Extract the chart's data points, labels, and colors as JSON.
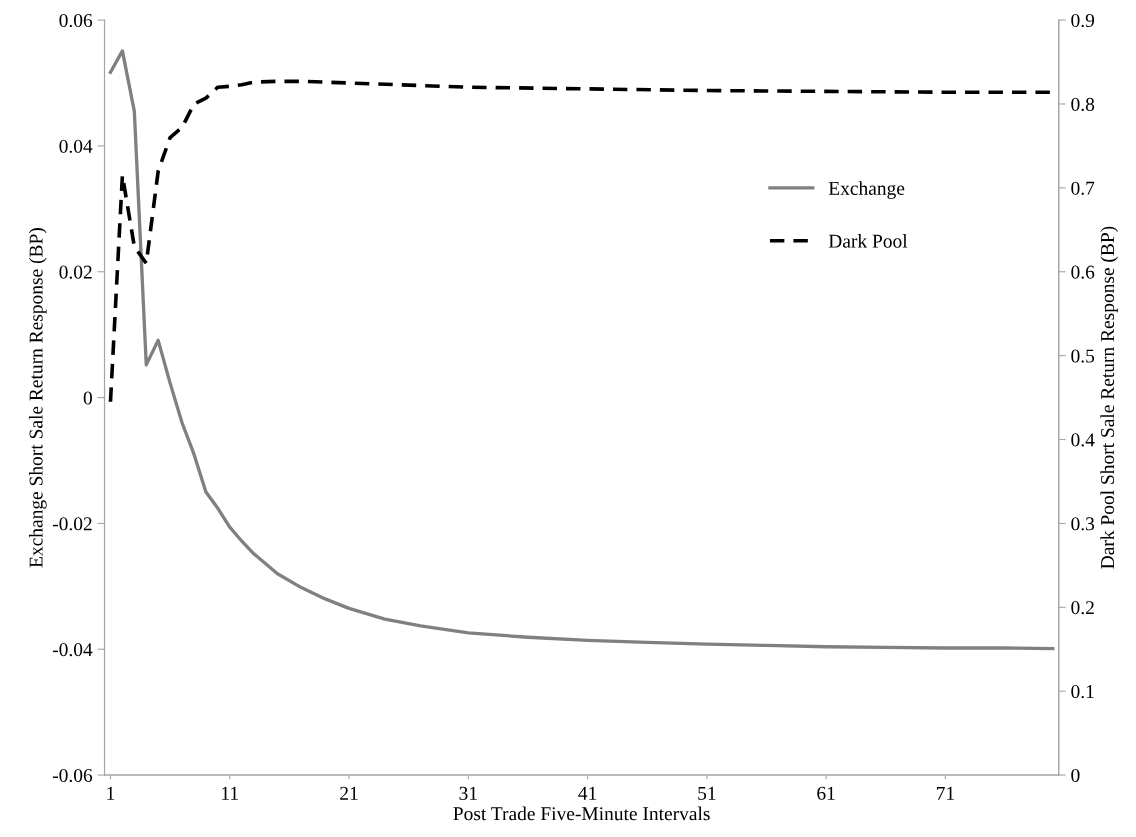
{
  "chart_data": {
    "type": "line",
    "xlabel": "Post Trade Five-Minute Intervals",
    "ylabel": "Exchange Short Sale Return Response (BP)",
    "y2label": "Dark Pool Short Sale Return Response (BP)",
    "xlim": [
      0.5,
      80.5
    ],
    "xticks": [
      1,
      11,
      21,
      31,
      41,
      51,
      61,
      71
    ],
    "ylim": [
      -0.06,
      0.06
    ],
    "yticks": [
      -0.06,
      -0.04,
      -0.02,
      0,
      0.02,
      0.04,
      0.06
    ],
    "y2lim": [
      0,
      0.9
    ],
    "y2ticks": [
      0,
      0.1,
      0.2,
      0.3,
      0.4,
      0.5,
      0.6,
      0.7,
      0.8,
      0.9
    ],
    "grid": false,
    "legend": "right",
    "marker": "none",
    "series": [
      {
        "name": "Exchange",
        "color": "#808080",
        "line_style": "solid",
        "x": [
          1,
          2,
          3,
          4,
          5,
          6,
          7,
          8,
          9,
          10,
          11,
          12,
          13,
          15,
          17,
          19,
          21,
          24,
          27,
          31,
          36,
          41,
          46,
          51,
          56,
          61,
          66,
          71,
          76,
          80
        ],
        "values": [
          0.0517,
          0.0551,
          0.0455,
          0.0052,
          0.0091,
          0.0023,
          -0.004,
          -0.009,
          -0.015,
          -0.0176,
          -0.0206,
          -0.0228,
          -0.0248,
          -0.028,
          -0.0302,
          -0.032,
          -0.0335,
          -0.0352,
          -0.0363,
          -0.0374,
          -0.0381,
          -0.0386,
          -0.0389,
          -0.0392,
          -0.0394,
          -0.0396,
          -0.0397,
          -0.0398,
          -0.0398,
          -0.0399
        ]
      },
      {
        "name": "Dark Pool",
        "color": "#000000",
        "line_style": "dashed",
        "axis": "y2",
        "x": [
          1,
          2,
          3,
          4,
          5,
          6,
          7,
          8,
          9,
          10,
          11,
          12,
          13,
          15,
          17,
          21,
          31,
          41,
          51,
          61,
          71,
          80
        ],
        "values": [
          0.445,
          0.715,
          0.63,
          0.61,
          0.72,
          0.76,
          0.772,
          0.8,
          0.807,
          0.82,
          0.821,
          0.823,
          0.826,
          0.827,
          0.827,
          0.825,
          0.82,
          0.818,
          0.816,
          0.815,
          0.814,
          0.814
        ]
      }
    ]
  }
}
